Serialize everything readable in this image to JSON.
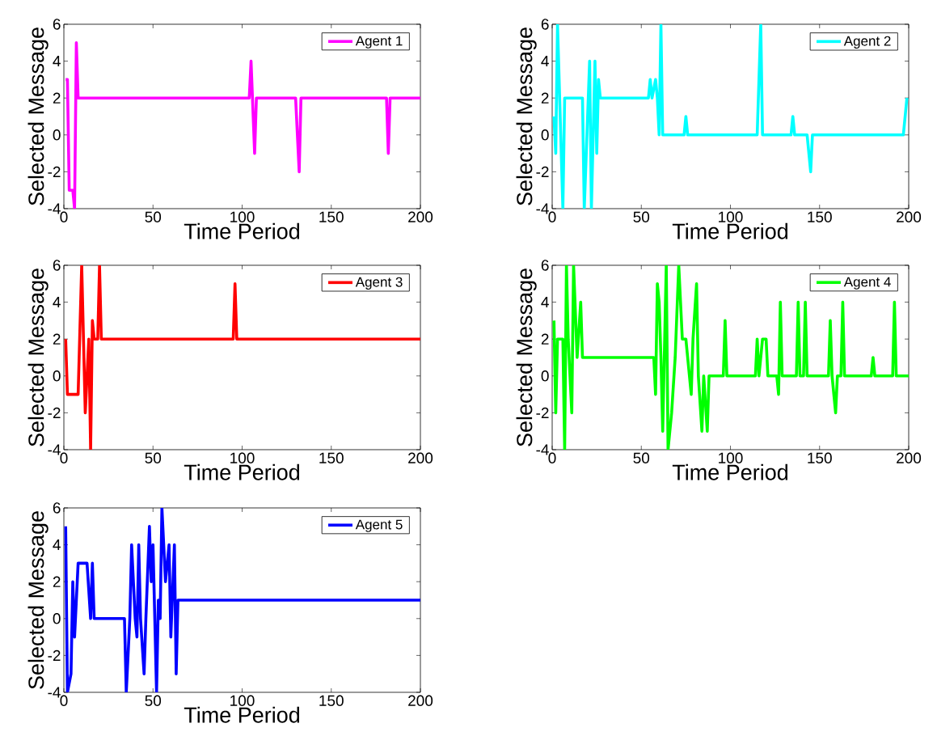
{
  "chart_data": [
    {
      "type": "line",
      "xlabel": "Time Period",
      "ylabel": "Selected Message",
      "xlim": [
        0,
        200
      ],
      "ylim": [
        -4,
        6
      ],
      "xticks": [
        0,
        50,
        100,
        150,
        200
      ],
      "yticks": [
        -4,
        -2,
        0,
        2,
        4,
        6
      ],
      "legend": "top right",
      "grid": false,
      "series": [
        {
          "name": "Agent 1",
          "color": "#ff00ff",
          "x": [
            1,
            2,
            3,
            5,
            6,
            7,
            8,
            104,
            105,
            107,
            108,
            130,
            132,
            133,
            181,
            182,
            183,
            200
          ],
          "values": [
            3,
            3,
            -3,
            -3,
            -4,
            5,
            2,
            2,
            4,
            -1,
            2,
            2,
            -2,
            2,
            2,
            -1,
            2,
            2
          ]
        }
      ]
    },
    {
      "type": "line",
      "xlabel": "Time Period",
      "ylabel": "Selected Message",
      "xlim": [
        0,
        200
      ],
      "ylim": [
        -4,
        6
      ],
      "xticks": [
        0,
        50,
        100,
        150,
        200
      ],
      "yticks": [
        -4,
        -2,
        0,
        2,
        4,
        6
      ],
      "legend": "top right",
      "grid": false,
      "series": [
        {
          "name": "Agent 2",
          "color": "#00ffff",
          "x": [
            1,
            2,
            3,
            6,
            7,
            17,
            18,
            21,
            22,
            24,
            25,
            26,
            27,
            54,
            55,
            56,
            58,
            59,
            60,
            61,
            62,
            74,
            75,
            76,
            115,
            117,
            118,
            134,
            135,
            136,
            143,
            145,
            146,
            197,
            199
          ],
          "values": [
            1,
            -1,
            6,
            -4,
            2,
            2,
            -4,
            4,
            -4,
            4,
            -1,
            3,
            2,
            2,
            3,
            2,
            3,
            2,
            0,
            6,
            0,
            0,
            1,
            0,
            0,
            6,
            0,
            0,
            1,
            0,
            0,
            -2,
            0,
            0,
            2
          ]
        }
      ]
    },
    {
      "type": "line",
      "xlabel": "Time Period",
      "ylabel": "Selected Message",
      "xlim": [
        0,
        200
      ],
      "ylim": [
        -4,
        6
      ],
      "xticks": [
        0,
        50,
        100,
        150,
        200
      ],
      "yticks": [
        -4,
        -2,
        0,
        2,
        4,
        6
      ],
      "legend": "top right",
      "grid": false,
      "series": [
        {
          "name": "Agent 3",
          "color": "#ff0000",
          "x": [
            1,
            2,
            8,
            10,
            12,
            14,
            15,
            16,
            17,
            19,
            20,
            21,
            95,
            96,
            97,
            200
          ],
          "values": [
            2,
            -1,
            -1,
            6,
            -2,
            2,
            -4,
            3,
            2,
            2,
            6,
            2,
            2,
            5,
            2,
            2
          ]
        }
      ]
    },
    {
      "type": "line",
      "xlabel": "Time Period",
      "ylabel": "Selected Message",
      "xlim": [
        0,
        200
      ],
      "ylim": [
        -4,
        6
      ],
      "xticks": [
        0,
        50,
        100,
        150,
        200
      ],
      "yticks": [
        -4,
        -2,
        0,
        2,
        4,
        6
      ],
      "legend": "top right",
      "grid": false,
      "series": [
        {
          "name": "Agent 4",
          "color": "#00ff00",
          "x": [
            1,
            2,
            3,
            6,
            7,
            8,
            9,
            11,
            12,
            14,
            16,
            17,
            57,
            58,
            59,
            60,
            61,
            62,
            64,
            65,
            67,
            69,
            71,
            73,
            75,
            78,
            79,
            81,
            82,
            84,
            85,
            87,
            88,
            96,
            97,
            98,
            114,
            115,
            116,
            118,
            120,
            121,
            126,
            127,
            128,
            129,
            137,
            138,
            139,
            141,
            142,
            143,
            155,
            156,
            157,
            159,
            160,
            162,
            163,
            164,
            179,
            180,
            181,
            191,
            192,
            193,
            200
          ],
          "values": [
            3,
            -2,
            2,
            2,
            -4,
            6,
            2,
            -2,
            6,
            1,
            4,
            1,
            1,
            -1,
            5,
            4,
            1,
            -3,
            6,
            -4,
            -2,
            1,
            6,
            2,
            2,
            -1,
            2,
            5,
            0,
            -3,
            0,
            -3,
            0,
            0,
            3,
            0,
            0,
            2,
            0,
            2,
            2,
            0,
            0,
            -1,
            4,
            0,
            0,
            4,
            0,
            0,
            4,
            0,
            0,
            3,
            0,
            -2,
            0,
            0,
            4,
            0,
            0,
            1,
            0,
            0,
            4,
            0,
            0
          ]
        }
      ]
    },
    {
      "type": "line",
      "xlabel": "Time Period",
      "ylabel": "Selected Message",
      "xlim": [
        0,
        200
      ],
      "ylim": [
        -4,
        6
      ],
      "xticks": [
        0,
        50,
        100,
        150,
        200
      ],
      "yticks": [
        -4,
        -2,
        0,
        2,
        4,
        6
      ],
      "legend": "top right",
      "grid": false,
      "series": [
        {
          "name": "Agent 5",
          "color": "#0000ff",
          "x": [
            1,
            2,
            4,
            5,
            6,
            8,
            13,
            15,
            16,
            17,
            34,
            35,
            37,
            38,
            40,
            41,
            42,
            43,
            45,
            46,
            48,
            49,
            50,
            52,
            53,
            54,
            55,
            57,
            59,
            60,
            62,
            63,
            64,
            200
          ],
          "values": [
            5,
            -4,
            -3,
            2,
            -1,
            3,
            3,
            0,
            3,
            0,
            0,
            -4,
            0,
            4,
            0,
            -1,
            4,
            0,
            -3,
            0,
            5,
            2,
            4,
            -4,
            1,
            0,
            6,
            2,
            4,
            -1,
            4,
            -3,
            1,
            1
          ]
        }
      ]
    }
  ]
}
